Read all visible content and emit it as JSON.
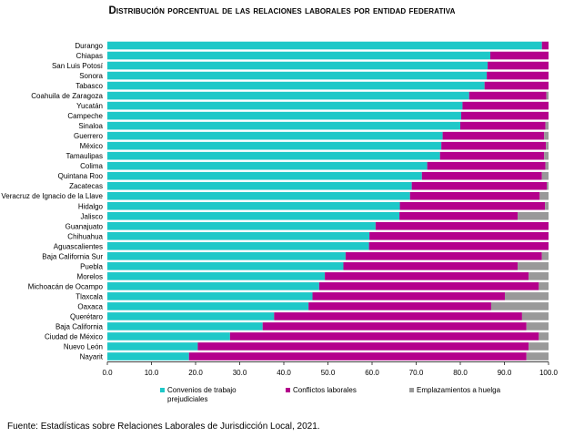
{
  "chart_data": {
    "type": "bar",
    "orientation": "horizontal",
    "stacked": true,
    "title": "Distribución porcentual de las relaciones laborales por entidad federativa",
    "categories": [
      "Durango",
      "Chiapas",
      "San Luis Potosí",
      "Sonora",
      "Tabasco",
      "Coahuila de Zaragoza",
      "Yucatán",
      "Campeche",
      "Sinaloa",
      "Guerrero",
      "México",
      "Tamaulipas",
      "Colima",
      "Quintana Roo",
      "Zacatecas",
      "Veracruz de Ignacio de la Llave",
      "Hidalgo",
      "Jalisco",
      "Guanajuato",
      "Chihuahua",
      "Aguascalientes",
      "Baja California Sur",
      "Puebla",
      "Morelos",
      "Michoacán de Ocampo",
      "Tlaxcala",
      "Oaxaca",
      "Querétaro",
      "Baja California",
      "Ciudad de México",
      "Nuevo León",
      "Nayarit"
    ],
    "series": [
      {
        "name": "Convenios de trabajo prejudiciales",
        "color": "#1ec8c8",
        "values": [
          98.5,
          86.8,
          86.2,
          86.0,
          85.5,
          82.0,
          80.5,
          80.2,
          80.0,
          76.0,
          75.7,
          75.4,
          72.5,
          71.3,
          69.0,
          68.6,
          66.3,
          66.2,
          60.8,
          59.4,
          59.3,
          54.0,
          53.5,
          49.3,
          48.0,
          46.5,
          45.6,
          37.8,
          35.2,
          27.8,
          20.5,
          18.5
        ]
      },
      {
        "name": "Conflictos laborales",
        "color": "#b4008c",
        "values": [
          1.5,
          13.2,
          13.8,
          14.0,
          14.5,
          17.5,
          19.5,
          19.8,
          19.3,
          23.0,
          23.7,
          23.6,
          26.8,
          27.2,
          30.6,
          29.4,
          32.9,
          26.8,
          39.2,
          40.6,
          40.7,
          44.5,
          39.5,
          46.2,
          49.8,
          43.6,
          41.4,
          56.2,
          59.8,
          70.0,
          75.0,
          76.5
        ]
      },
      {
        "name": "Emplazamientos a huelga",
        "color": "#999999",
        "values": [
          0.0,
          0.0,
          0.0,
          0.0,
          0.0,
          0.5,
          0.0,
          0.0,
          0.7,
          1.0,
          0.6,
          1.0,
          0.7,
          1.5,
          0.4,
          2.0,
          0.8,
          7.0,
          0.0,
          0.0,
          0.0,
          1.5,
          7.0,
          4.5,
          2.2,
          9.9,
          13.0,
          6.0,
          5.0,
          2.2,
          4.5,
          5.0
        ]
      }
    ],
    "x_ticks": [
      "0.0",
      "10.0",
      "20.0",
      "30.0",
      "40.0",
      "50.0",
      "60.0",
      "70.0",
      "80.0",
      "90.0",
      "100.0"
    ],
    "xlim": [
      0,
      100
    ],
    "legend_position": "bottom",
    "grid": false
  },
  "source": "Fuente: Estadísticas sobre Relaciones Laborales de Jurisdicción Local, 2021."
}
